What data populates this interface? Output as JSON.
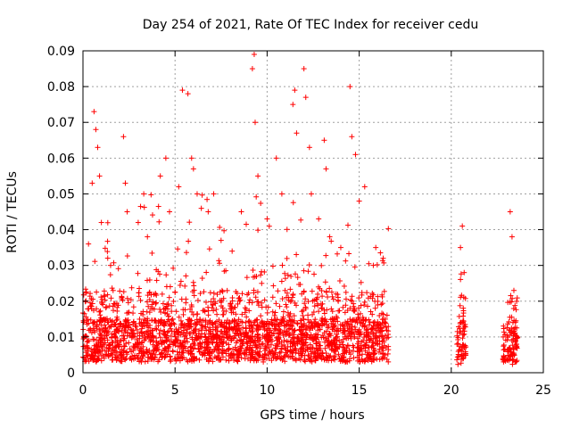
{
  "chart_data": {
    "type": "scatter",
    "title": "Day 254 of 2021, Rate Of TEC Index for receiver cedu",
    "xlabel": "GPS time / hours",
    "ylabel": "ROTI / TECUs",
    "xlim": [
      0,
      25
    ],
    "ylim": [
      0,
      0.09
    ],
    "xticks": [
      0,
      5,
      10,
      15,
      20,
      25
    ],
    "xtick_labels": [
      "0",
      "5",
      "10",
      "15",
      "20",
      "25"
    ],
    "yticks": [
      0,
      0.01,
      0.02,
      0.03,
      0.04,
      0.05,
      0.06,
      0.07,
      0.08,
      0.09
    ],
    "ytick_labels": [
      "0",
      "0.01",
      "0.02",
      "0.03",
      "0.04",
      "0.05",
      "0.06",
      "0.07",
      "0.08",
      "0.09"
    ],
    "grid": true,
    "marker": "plus",
    "color": "#ff0000",
    "series": [
      {
        "coverage_hours": [
          [
            0,
            16.6
          ],
          [
            20.3,
            20.8
          ],
          [
            22.8,
            23.6
          ]
        ],
        "points": [
          [
            0.3,
            0.036
          ],
          [
            0.5,
            0.053
          ],
          [
            0.6,
            0.073
          ],
          [
            0.7,
            0.068
          ],
          [
            0.8,
            0.063
          ],
          [
            0.9,
            0.055
          ],
          [
            1.0,
            0.042
          ],
          [
            1.5,
            0.03
          ],
          [
            2.2,
            0.066
          ],
          [
            2.3,
            0.053
          ],
          [
            2.4,
            0.045
          ],
          [
            3.0,
            0.042
          ],
          [
            3.3,
            0.05
          ],
          [
            3.5,
            0.038
          ],
          [
            4.2,
            0.055
          ],
          [
            4.5,
            0.06
          ],
          [
            4.7,
            0.045
          ],
          [
            5.2,
            0.052
          ],
          [
            5.4,
            0.079
          ],
          [
            5.7,
            0.078
          ],
          [
            5.9,
            0.06
          ],
          [
            6.0,
            0.057
          ],
          [
            6.2,
            0.05
          ],
          [
            6.8,
            0.045
          ],
          [
            7.1,
            0.05
          ],
          [
            7.5,
            0.037
          ],
          [
            8.1,
            0.034
          ],
          [
            8.6,
            0.045
          ],
          [
            9.2,
            0.085
          ],
          [
            9.3,
            0.089
          ],
          [
            9.35,
            0.07
          ],
          [
            9.5,
            0.055
          ],
          [
            10.0,
            0.043
          ],
          [
            10.5,
            0.06
          ],
          [
            10.8,
            0.05
          ],
          [
            11.4,
            0.075
          ],
          [
            11.5,
            0.079
          ],
          [
            11.6,
            0.067
          ],
          [
            12.0,
            0.085
          ],
          [
            12.1,
            0.077
          ],
          [
            12.3,
            0.063
          ],
          [
            12.4,
            0.05
          ],
          [
            12.8,
            0.043
          ],
          [
            13.1,
            0.065
          ],
          [
            13.2,
            0.057
          ],
          [
            13.4,
            0.038
          ],
          [
            14.0,
            0.035
          ],
          [
            14.5,
            0.08
          ],
          [
            14.6,
            0.066
          ],
          [
            14.8,
            0.061
          ],
          [
            15.0,
            0.048
          ],
          [
            15.3,
            0.052
          ],
          [
            15.9,
            0.035
          ],
          [
            16.3,
            0.032
          ],
          [
            20.5,
            0.035
          ],
          [
            20.6,
            0.041
          ],
          [
            20.7,
            0.028
          ],
          [
            23.2,
            0.045
          ],
          [
            23.3,
            0.038
          ],
          [
            23.4,
            0.023
          ]
        ]
      }
    ]
  }
}
